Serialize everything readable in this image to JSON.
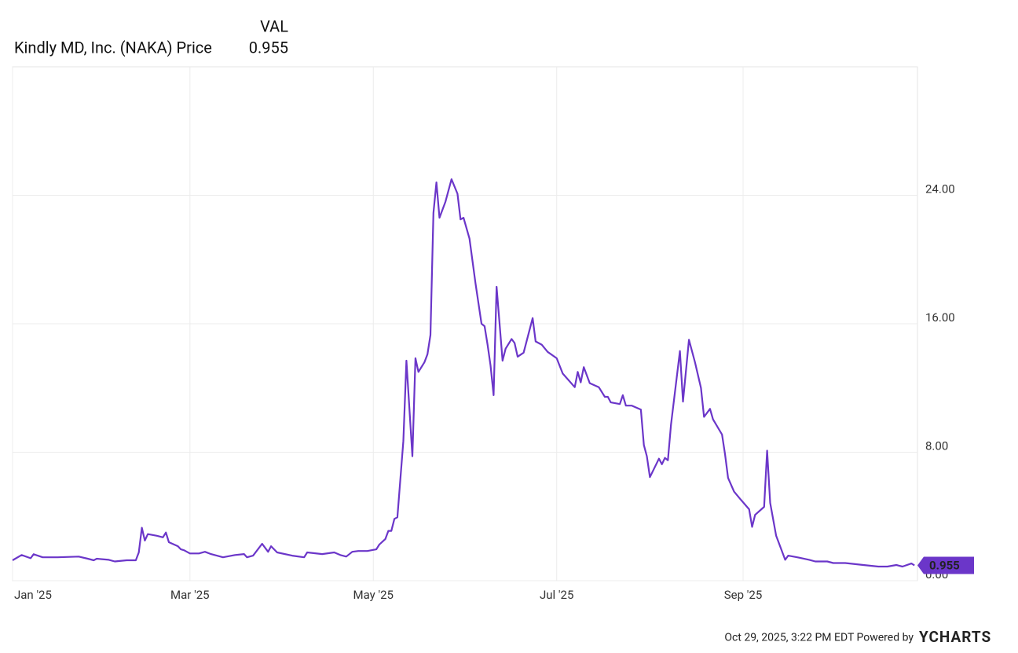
{
  "chart_data": {
    "type": "line",
    "header_label": "VAL",
    "footer": "Oct 29, 2025, 3:22 PM EDT Powered by",
    "brand": "YCHARTS",
    "last_label": "0.955",
    "x": [
      0,
      3,
      6,
      7,
      10,
      15,
      22,
      25,
      27,
      28,
      32,
      34,
      38,
      41,
      42,
      43,
      44,
      45,
      48,
      50,
      51,
      52,
      55,
      56,
      57,
      59,
      62,
      64,
      66,
      70,
      74,
      77,
      78,
      80,
      83,
      85,
      86,
      88,
      93,
      97,
      98,
      103,
      107,
      109,
      111,
      113,
      115,
      118,
      121,
      122,
      124,
      125,
      126,
      127,
      128,
      130,
      131,
      133,
      134,
      135,
      137,
      138,
      139,
      140,
      141,
      142,
      144,
      146,
      148,
      149,
      150,
      152,
      154,
      156,
      157,
      158,
      159,
      160,
      161,
      163,
      164,
      166,
      167,
      168,
      170,
      173,
      174,
      176,
      178,
      181,
      183,
      187,
      188,
      189,
      190,
      192,
      195,
      197,
      198,
      199,
      202,
      203,
      204,
      206,
      209,
      210,
      211,
      212,
      215,
      216,
      217,
      218,
      219,
      222,
      223,
      225,
      227,
      229,
      230,
      232,
      233,
      236,
      237,
      238,
      240,
      242,
      245,
      246,
      247,
      250,
      251,
      252,
      254,
      257,
      258,
      261,
      265,
      267,
      271,
      273,
      277,
      283,
      288,
      291,
      294,
      296,
      299,
      300
    ],
    "series": [
      {
        "name": "Kindly MD, Inc. (NAKA) Price",
        "color": "#6b36c9",
        "values": [
          1.27,
          1.6,
          1.4,
          1.65,
          1.46,
          1.46,
          1.5,
          1.37,
          1.27,
          1.37,
          1.3,
          1.2,
          1.27,
          1.27,
          1.76,
          3.3,
          2.5,
          2.9,
          2.8,
          2.7,
          3.0,
          2.4,
          2.15,
          1.95,
          1.9,
          1.7,
          1.7,
          1.8,
          1.66,
          1.46,
          1.6,
          1.66,
          1.46,
          1.56,
          2.3,
          1.8,
          2.15,
          1.76,
          1.56,
          1.46,
          1.76,
          1.66,
          1.76,
          1.6,
          1.5,
          1.8,
          1.85,
          1.85,
          1.95,
          2.25,
          2.6,
          3.1,
          3.1,
          3.85,
          3.95,
          8.7,
          13.7,
          7.75,
          13.85,
          13.0,
          13.6,
          14.1,
          15.3,
          22.9,
          24.8,
          22.6,
          23.6,
          25.0,
          24.1,
          22.5,
          22.6,
          21.3,
          18.5,
          16.0,
          15.85,
          14.7,
          13.4,
          11.55,
          18.3,
          13.7,
          14.45,
          15.05,
          14.8,
          13.95,
          14.2,
          16.35,
          14.9,
          14.7,
          14.25,
          13.85,
          12.9,
          12.05,
          13.0,
          12.35,
          13.3,
          12.3,
          12.05,
          11.45,
          11.45,
          11.1,
          11.0,
          11.55,
          10.9,
          10.9,
          10.65,
          8.45,
          7.75,
          6.45,
          7.6,
          7.25,
          7.65,
          7.5,
          9.7,
          14.3,
          11.15,
          15.0,
          13.6,
          12.0,
          10.2,
          10.7,
          10.05,
          9.1,
          7.85,
          6.4,
          5.55,
          5.1,
          4.45,
          3.35,
          4.1,
          4.6,
          8.1,
          4.85,
          2.8,
          1.3,
          1.56,
          1.46,
          1.3,
          1.2,
          1.2,
          1.1,
          1.1,
          0.98,
          0.88,
          0.88,
          0.98,
          0.88,
          1.07,
          0.955
        ]
      }
    ],
    "xlim": [
      0,
      301
    ],
    "xticks": [
      {
        "value": 0,
        "label": "Jan '25"
      },
      {
        "value": 59,
        "label": "Mar '25"
      },
      {
        "value": 120,
        "label": "May '25"
      },
      {
        "value": 181,
        "label": "Jul '25"
      },
      {
        "value": 243,
        "label": "Sep '25"
      }
    ],
    "ylim": [
      0,
      32
    ],
    "yticks": [
      {
        "value": 0,
        "label": "0.00"
      },
      {
        "value": 8,
        "label": "8.00"
      },
      {
        "value": 16,
        "label": "16.00"
      },
      {
        "value": 24,
        "label": "24.00"
      }
    ],
    "grid": true
  }
}
